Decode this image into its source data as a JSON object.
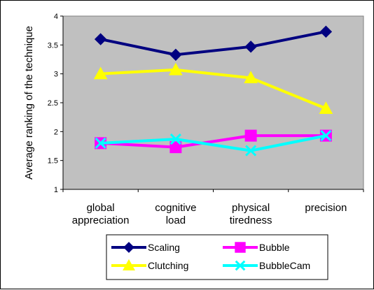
{
  "chart_data": {
    "type": "line",
    "title": "",
    "xlabel": "",
    "ylabel": "Average ranking of the technique",
    "ylim": [
      1,
      4
    ],
    "yticks": [
      "1",
      "1.5",
      "2",
      "2.5",
      "3",
      "3.5",
      "4"
    ],
    "ytick_values": [
      1,
      1.5,
      2,
      2.5,
      3,
      3.5,
      4
    ],
    "categories": [
      [
        "global",
        "appreciation"
      ],
      [
        "cognitive",
        "load"
      ],
      [
        "physical",
        "tiredness"
      ],
      [
        "precision"
      ]
    ],
    "plot_background": "#c0c0c0",
    "grid": false,
    "legend_position": "bottom",
    "series": [
      {
        "name": "Scaling",
        "values": [
          3.6,
          3.33,
          3.47,
          3.73
        ],
        "color": "#000080",
        "marker": "diamond"
      },
      {
        "name": "Clutching",
        "values": [
          3.0,
          3.07,
          2.93,
          2.4
        ],
        "color": "#ffff00",
        "marker": "triangle"
      },
      {
        "name": "Bubble",
        "values": [
          1.8,
          1.73,
          1.93,
          1.93
        ],
        "color": "#ff00ff",
        "marker": "square"
      },
      {
        "name": "BubbleCam",
        "values": [
          1.8,
          1.87,
          1.67,
          1.93
        ],
        "color": "#00ffff",
        "marker": "x"
      }
    ],
    "legend_order": [
      "Scaling",
      "Bubble",
      "Clutching",
      "BubbleCam"
    ]
  }
}
